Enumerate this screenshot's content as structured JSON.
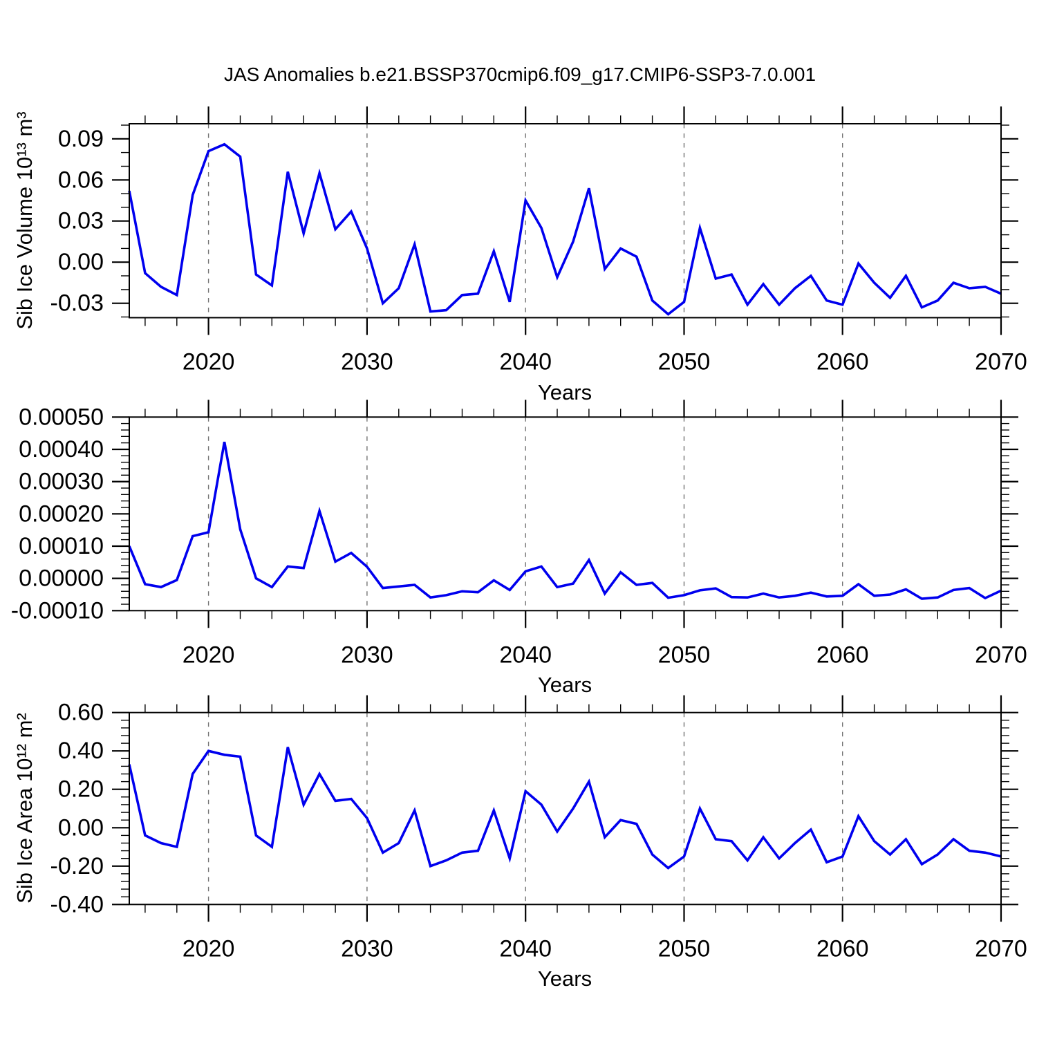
{
  "page": {
    "title": "JAS Anomalies b.e21.BSSP370cmip6.f09_g17.CMIP6-SSP3-7.0.001",
    "background": "#ffffff"
  },
  "style": {
    "line_color": "#0000EE",
    "grid_color": "#737373",
    "axis_color": "#000000",
    "text_color": "#000000"
  },
  "chart_data": [
    {
      "type": "line",
      "name": "sib-ice-volume",
      "ylabel": "Sib Ice Volume 10¹³ m³",
      "xlabel": "Years",
      "xlim": [
        2015,
        2070
      ],
      "ylim": [
        -0.0405,
        0.101
      ],
      "xticks": [
        2020,
        2030,
        2040,
        2050,
        2060,
        2070
      ],
      "xtick_labels": [
        "2020",
        "2030",
        "2040",
        "2050",
        "2060",
        "2070"
      ],
      "x_minor_step": 2,
      "grid_x": [
        2020,
        2030,
        2040,
        2050,
        2060
      ],
      "yticks": [
        0.09,
        0.06,
        0.03,
        0.0,
        -0.03
      ],
      "ytick_labels": [
        "0.09",
        "0.06",
        "0.03",
        "0.00",
        "-0.03"
      ],
      "y_minor_step": 0.01,
      "grid": "dashed-vertical-only",
      "legend": "none",
      "x": [
        2015,
        2016,
        2017,
        2018,
        2019,
        2020,
        2021,
        2022,
        2023,
        2024,
        2025,
        2026,
        2027,
        2028,
        2029,
        2030,
        2031,
        2032,
        2033,
        2034,
        2035,
        2036,
        2037,
        2038,
        2039,
        2040,
        2041,
        2042,
        2043,
        2044,
        2045,
        2046,
        2047,
        2048,
        2049,
        2050,
        2051,
        2052,
        2053,
        2054,
        2055,
        2056,
        2057,
        2058,
        2059,
        2060,
        2061,
        2062,
        2063,
        2064,
        2065,
        2066,
        2067,
        2068,
        2069,
        2070
      ],
      "values": [
        0.052,
        -0.008,
        -0.018,
        -0.024,
        0.049,
        0.081,
        0.086,
        0.077,
        -0.009,
        -0.017,
        0.066,
        0.021,
        0.065,
        0.024,
        0.037,
        0.01,
        -0.03,
        -0.019,
        0.013,
        -0.036,
        -0.035,
        -0.024,
        -0.023,
        0.008,
        -0.029,
        0.045,
        0.025,
        -0.011,
        0.015,
        0.054,
        -0.005,
        0.01,
        0.004,
        -0.028,
        -0.038,
        -0.029,
        0.025,
        -0.012,
        -0.009,
        -0.031,
        -0.016,
        -0.031,
        -0.019,
        -0.01,
        -0.028,
        -0.031,
        -0.001,
        -0.015,
        -0.026,
        -0.01,
        -0.033,
        -0.028,
        -0.015,
        -0.019,
        -0.018,
        -0.023
      ]
    },
    {
      "type": "line",
      "name": "sib-ice-middle",
      "xlabel": "Years",
      "xlim": [
        2015,
        2070
      ],
      "ylim": [
        -0.0001,
        0.0005
      ],
      "xticks": [
        2020,
        2030,
        2040,
        2050,
        2060,
        2070
      ],
      "xtick_labels": [
        "2020",
        "2030",
        "2040",
        "2050",
        "2060",
        "2070"
      ],
      "x_minor_step": 2,
      "grid_x": [
        2020,
        2030,
        2040,
        2050,
        2060
      ],
      "yticks": [
        0.0005,
        0.0004,
        0.0003,
        0.0002,
        0.0001,
        0.0,
        -0.0001
      ],
      "ytick_labels": [
        "0.00050",
        "0.00040",
        "0.00030",
        "0.00020",
        "0.00010",
        "0.00000",
        "-0.00010"
      ],
      "y_minor_step": 2e-05,
      "grid": "dashed-vertical-only",
      "legend": "none",
      "x": [
        2015,
        2016,
        2017,
        2018,
        2019,
        2020,
        2021,
        2022,
        2023,
        2024,
        2025,
        2026,
        2027,
        2028,
        2029,
        2030,
        2031,
        2032,
        2033,
        2034,
        2035,
        2036,
        2037,
        2038,
        2039,
        2040,
        2041,
        2042,
        2043,
        2044,
        2045,
        2046,
        2047,
        2048,
        2049,
        2050,
        2051,
        2052,
        2053,
        2054,
        2055,
        2056,
        2057,
        2058,
        2059,
        2060,
        2061,
        2062,
        2063,
        2064,
        2065,
        2066,
        2067,
        2068,
        2069,
        2070
      ],
      "values": [
        0.0001,
        -1.8e-05,
        -2.7e-05,
        -5e-06,
        0.000131,
        0.000143,
        0.000423,
        0.000152,
        0.0,
        -2.7e-05,
        3.7e-05,
        3.2e-05,
        0.000209,
        5.2e-05,
        7.9e-05,
        3.6e-05,
        -3e-05,
        -2.5e-05,
        -2e-05,
        -5.9e-05,
        -5.2e-05,
        -4e-05,
        -4.3e-05,
        -6e-06,
        -3.6e-05,
        2.2e-05,
        3.7e-05,
        -2.7e-05,
        -1.6e-05,
        5.7e-05,
        -4.7e-05,
        1.9e-05,
        -2e-05,
        -1.4e-05,
        -6e-05,
        -5.2e-05,
        -3.7e-05,
        -3.1e-05,
        -5.8e-05,
        -5.9e-05,
        -4.7e-05,
        -5.9e-05,
        -5.4e-05,
        -4.4e-05,
        -5.6e-05,
        -5.4e-05,
        -1.8e-05,
        -5.4e-05,
        -5e-05,
        -3.4e-05,
        -6.3e-05,
        -5.9e-05,
        -3.6e-05,
        -3e-05,
        -6.1e-05,
        -3.8e-05
      ]
    },
    {
      "type": "line",
      "name": "sib-ice-area",
      "ylabel": "Sib Ice Area 10¹² m²",
      "xlabel": "Years",
      "xlim": [
        2015,
        2070
      ],
      "ylim": [
        -0.4,
        0.6
      ],
      "xticks": [
        2020,
        2030,
        2040,
        2050,
        2060,
        2070
      ],
      "xtick_labels": [
        "2020",
        "2030",
        "2040",
        "2050",
        "2060",
        "2070"
      ],
      "x_minor_step": 2,
      "grid_x": [
        2020,
        2030,
        2040,
        2050,
        2060
      ],
      "yticks": [
        0.6,
        0.4,
        0.2,
        0.0,
        -0.2,
        -0.4
      ],
      "ytick_labels": [
        "0.60",
        "0.40",
        "0.20",
        "0.00",
        "-0.20",
        "-0.40"
      ],
      "y_minor_step": 0.04,
      "grid": "dashed-vertical-only",
      "legend": "none",
      "x": [
        2015,
        2016,
        2017,
        2018,
        2019,
        2020,
        2021,
        2022,
        2023,
        2024,
        2025,
        2026,
        2027,
        2028,
        2029,
        2030,
        2031,
        2032,
        2033,
        2034,
        2035,
        2036,
        2037,
        2038,
        2039,
        2040,
        2041,
        2042,
        2043,
        2044,
        2045,
        2046,
        2047,
        2048,
        2049,
        2050,
        2051,
        2052,
        2053,
        2054,
        2055,
        2056,
        2057,
        2058,
        2059,
        2060,
        2061,
        2062,
        2063,
        2064,
        2065,
        2066,
        2067,
        2068,
        2069,
        2070
      ],
      "values": [
        0.33,
        -0.04,
        -0.08,
        -0.1,
        0.28,
        0.4,
        0.38,
        0.37,
        -0.04,
        -0.1,
        0.42,
        0.12,
        0.28,
        0.14,
        0.15,
        0.05,
        -0.13,
        -0.08,
        0.09,
        -0.2,
        -0.17,
        -0.13,
        -0.12,
        0.09,
        -0.16,
        0.19,
        0.12,
        -0.02,
        0.1,
        0.24,
        -0.05,
        0.04,
        0.02,
        -0.14,
        -0.21,
        -0.15,
        0.1,
        -0.06,
        -0.07,
        -0.17,
        -0.05,
        -0.16,
        -0.08,
        -0.01,
        -0.18,
        -0.15,
        0.06,
        -0.07,
        -0.14,
        -0.06,
        -0.19,
        -0.14,
        -0.06,
        -0.12,
        -0.13,
        -0.15
      ]
    }
  ]
}
